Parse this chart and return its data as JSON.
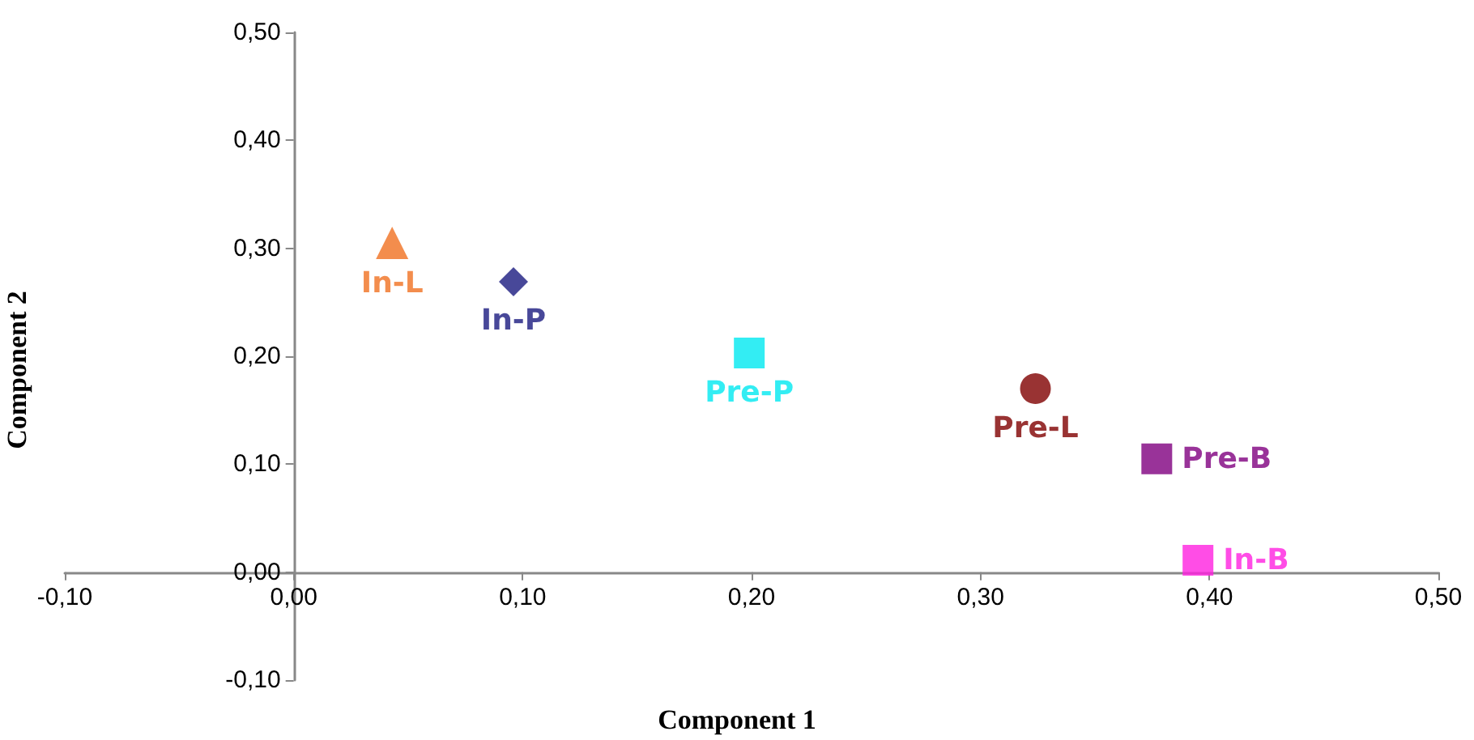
{
  "chart_data": {
    "type": "scatter",
    "xlabel": "Component 1",
    "ylabel": "Component 2",
    "grid": false,
    "legend": false,
    "xlim": [
      -0.1,
      0.5
    ],
    "ylim": [
      -0.1,
      0.5
    ],
    "xticks": [
      {
        "value": -0.1,
        "label": "-0,10"
      },
      {
        "value": 0,
        "label": "0,00"
      },
      {
        "value": 0.1,
        "label": "0,10"
      },
      {
        "value": 0.2,
        "label": "0,20"
      },
      {
        "value": 0.3,
        "label": "0,30"
      },
      {
        "value": 0.4,
        "label": "0,40"
      },
      {
        "value": 0.5,
        "label": "0,50"
      }
    ],
    "yticks": [
      {
        "value": -0.1,
        "label": "-0,10"
      },
      {
        "value": 0,
        "label": "0,00"
      },
      {
        "value": 0.1,
        "label": "0,10"
      },
      {
        "value": 0.2,
        "label": "0,20"
      },
      {
        "value": 0.3,
        "label": "0,30"
      },
      {
        "value": 0.4,
        "label": "0,40"
      },
      {
        "value": 0.5,
        "label": "0,50"
      }
    ],
    "series": [
      {
        "name": "In-L",
        "color": "#f07020",
        "marker": "triangle",
        "x": [
          0.043
        ],
        "values": [
          0.305
        ]
      },
      {
        "name": "In-P",
        "color": "#1a1a80",
        "marker": "diamond",
        "x": [
          0.096
        ],
        "values": [
          0.269
        ]
      },
      {
        "name": "Pre-P",
        "color": "#00e8f0",
        "marker": "square",
        "x": [
          0.199
        ],
        "values": [
          0.203
        ]
      },
      {
        "name": "Pre-L",
        "color": "#800000",
        "marker": "circle",
        "x": [
          0.324
        ],
        "values": [
          0.17
        ]
      },
      {
        "name": "Pre-B",
        "color": "#800080",
        "marker": "square",
        "x": [
          0.377
        ],
        "values": [
          0.105
        ]
      },
      {
        "name": "In-B",
        "color": "#ff20e0",
        "marker": "square",
        "x": [
          0.395
        ],
        "values": [
          0.011
        ]
      }
    ]
  }
}
